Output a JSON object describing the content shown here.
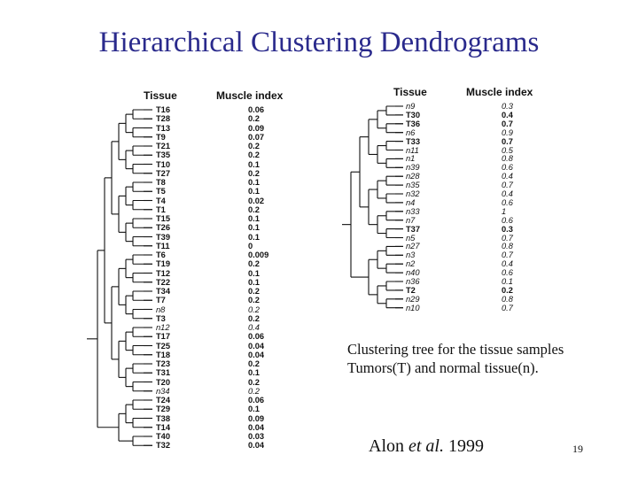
{
  "title": "Hierarchical Clustering Dendrograms",
  "left_panel": {
    "tissue_header": "Tissue",
    "index_header": "Muscle index",
    "rows": [
      {
        "tissue": "T16",
        "index": "0.06",
        "normal": false
      },
      {
        "tissue": "T28",
        "index": "0.2",
        "normal": false
      },
      {
        "tissue": "T13",
        "index": "0.09",
        "normal": false
      },
      {
        "tissue": "T9",
        "index": "0.07",
        "normal": false
      },
      {
        "tissue": "T21",
        "index": "0.2",
        "normal": false
      },
      {
        "tissue": "T35",
        "index": "0.2",
        "normal": false
      },
      {
        "tissue": "T10",
        "index": "0.1",
        "normal": false
      },
      {
        "tissue": "T27",
        "index": "0.2",
        "normal": false
      },
      {
        "tissue": "T8",
        "index": "0.1",
        "normal": false
      },
      {
        "tissue": "T5",
        "index": "0.1",
        "normal": false
      },
      {
        "tissue": "T4",
        "index": "0.02",
        "normal": false
      },
      {
        "tissue": "T1",
        "index": "0.2",
        "normal": false
      },
      {
        "tissue": "T15",
        "index": "0.1",
        "normal": false
      },
      {
        "tissue": "T26",
        "index": "0.1",
        "normal": false
      },
      {
        "tissue": "T39",
        "index": "0.1",
        "normal": false
      },
      {
        "tissue": "T11",
        "index": "0",
        "normal": false
      },
      {
        "tissue": "T6",
        "index": "0.009",
        "normal": false
      },
      {
        "tissue": "T19",
        "index": "0.2",
        "normal": false
      },
      {
        "tissue": "T12",
        "index": "0.1",
        "normal": false
      },
      {
        "tissue": "T22",
        "index": "0.1",
        "normal": false
      },
      {
        "tissue": "T34",
        "index": "0.2",
        "normal": false
      },
      {
        "tissue": "T7",
        "index": "0.2",
        "normal": false
      },
      {
        "tissue": "n8",
        "index": "0.2",
        "normal": true
      },
      {
        "tissue": "T3",
        "index": "0.2",
        "normal": false
      },
      {
        "tissue": "n12",
        "index": "0.4",
        "normal": true
      },
      {
        "tissue": "T17",
        "index": "0.06",
        "normal": false
      },
      {
        "tissue": "T25",
        "index": "0.04",
        "normal": false
      },
      {
        "tissue": "T18",
        "index": "0.04",
        "normal": false
      },
      {
        "tissue": "T23",
        "index": "0.2",
        "normal": false
      },
      {
        "tissue": "T31",
        "index": "0.1",
        "normal": false
      },
      {
        "tissue": "T20",
        "index": "0.2",
        "normal": false
      },
      {
        "tissue": "n34",
        "index": "0.2",
        "normal": true
      },
      {
        "tissue": "T24",
        "index": "0.06",
        "normal": false
      },
      {
        "tissue": "T29",
        "index": "0.1",
        "normal": false
      },
      {
        "tissue": "T38",
        "index": "0.09",
        "normal": false
      },
      {
        "tissue": "T14",
        "index": "0.04",
        "normal": false
      },
      {
        "tissue": "T40",
        "index": "0.03",
        "normal": false
      },
      {
        "tissue": "T32",
        "index": "0.04",
        "normal": false
      }
    ]
  },
  "right_panel": {
    "tissue_header": "Tissue",
    "index_header": "Muscle index",
    "rows": [
      {
        "tissue": "n9",
        "index": "0.3",
        "normal": true
      },
      {
        "tissue": "T30",
        "index": "0.4",
        "normal": false
      },
      {
        "tissue": "T36",
        "index": "0.7",
        "normal": false
      },
      {
        "tissue": "n6",
        "index": "0.9",
        "normal": true
      },
      {
        "tissue": "T33",
        "index": "0.7",
        "normal": false
      },
      {
        "tissue": "n11",
        "index": "0.5",
        "normal": true
      },
      {
        "tissue": "n1",
        "index": "0.8",
        "normal": true
      },
      {
        "tissue": "n39",
        "index": "0.6",
        "normal": true
      },
      {
        "tissue": "n28",
        "index": "0.4",
        "normal": true
      },
      {
        "tissue": "n35",
        "index": "0.7",
        "normal": true
      },
      {
        "tissue": "n32",
        "index": "0.4",
        "normal": true
      },
      {
        "tissue": "n4",
        "index": "0.6",
        "normal": true
      },
      {
        "tissue": "n33",
        "index": "1",
        "normal": true
      },
      {
        "tissue": "n7",
        "index": "0.6",
        "normal": true
      },
      {
        "tissue": "T37",
        "index": "0.3",
        "normal": false
      },
      {
        "tissue": "n5",
        "index": "0.7",
        "normal": true
      },
      {
        "tissue": "n27",
        "index": "0.8",
        "normal": true
      },
      {
        "tissue": "n3",
        "index": "0.7",
        "normal": true
      },
      {
        "tissue": "n2",
        "index": "0.4",
        "normal": true
      },
      {
        "tissue": "n40",
        "index": "0.6",
        "normal": true
      },
      {
        "tissue": "n36",
        "index": "0.1",
        "normal": true
      },
      {
        "tissue": "T2",
        "index": "0.2",
        "normal": false
      },
      {
        "tissue": "n29",
        "index": "0.8",
        "normal": true
      },
      {
        "tissue": "n10",
        "index": "0.7",
        "normal": true
      }
    ]
  },
  "caption": {
    "line1": "Clustering tree for the tissue samples",
    "line2": "Tumors(T) and normal tissue(n)."
  },
  "citation": {
    "author": "Alon ",
    "etal": "et al.",
    "year": " 1999"
  },
  "page_number": "19"
}
